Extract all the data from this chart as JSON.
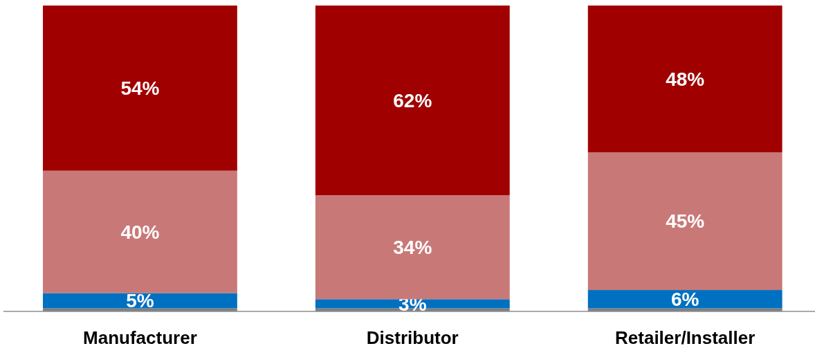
{
  "chart_data": {
    "type": "bar",
    "stacked": true,
    "categories": [
      "Manufacturer",
      "Distributor",
      "Retailer/Installer"
    ],
    "ylim": [
      0,
      100
    ],
    "series": [
      {
        "color": "#808080",
        "values": [
          1,
          1,
          1
        ],
        "value_labels": [
          null,
          null,
          null
        ]
      },
      {
        "color": "#0070c0",
        "values": [
          5,
          3,
          6
        ],
        "value_labels": [
          "5%",
          "3%",
          "6%"
        ]
      },
      {
        "color": "#c97878",
        "values": [
          40,
          34,
          45
        ],
        "value_labels": [
          "40%",
          "34%",
          "45%"
        ]
      },
      {
        "color": "#a00000",
        "values": [
          54,
          62,
          48
        ],
        "value_labels": [
          "54%",
          "62%",
          "48%"
        ]
      }
    ]
  }
}
